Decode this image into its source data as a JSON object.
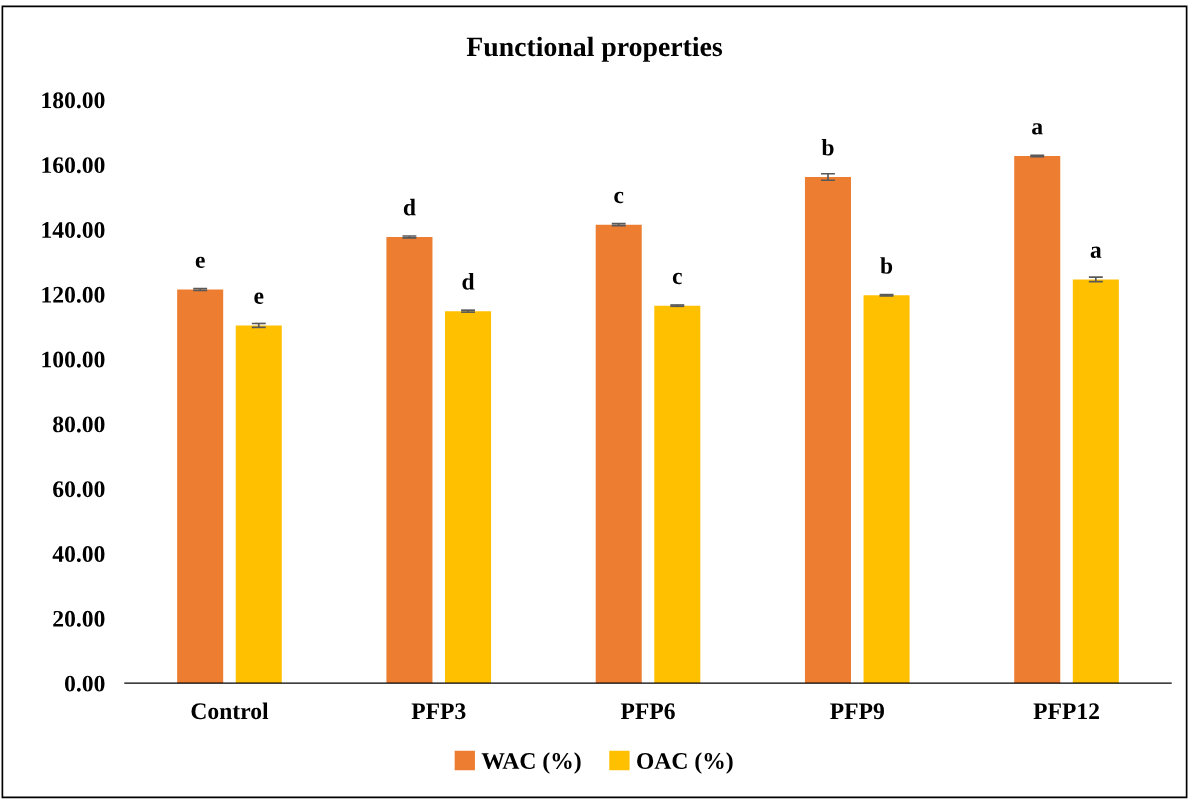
{
  "chart_data": {
    "type": "bar",
    "title": "Functional properties",
    "categories": [
      "Control",
      "PFP3",
      "PFP6",
      "PFP9",
      "PFP12"
    ],
    "series": [
      {
        "name": "WAC (%)",
        "color": "#ed7d31",
        "values": [
          121.5,
          137.7,
          141.5,
          156.2,
          162.7
        ],
        "errors": [
          0.3,
          0.3,
          0.3,
          1.0,
          0.2
        ],
        "value_labels": [
          "e",
          "d",
          "c",
          "b",
          "a"
        ]
      },
      {
        "name": "OAC (%)",
        "color": "#ffc000",
        "values": [
          110.4,
          114.8,
          116.5,
          119.7,
          124.6
        ],
        "errors": [
          0.6,
          0.3,
          0.2,
          0.2,
          0.7
        ],
        "value_labels": [
          "e",
          "d",
          "c",
          "b",
          "a"
        ]
      }
    ],
    "ylim": [
      0,
      180
    ],
    "yticks": [
      {
        "value": 0,
        "label": "0.00"
      },
      {
        "value": 20,
        "label": "20.00"
      },
      {
        "value": 40,
        "label": "40.00"
      },
      {
        "value": 60,
        "label": "60.00"
      },
      {
        "value": 80,
        "label": "80.00"
      },
      {
        "value": 100,
        "label": "100.00"
      },
      {
        "value": 120,
        "label": "120.00"
      },
      {
        "value": 140,
        "label": "140.00"
      },
      {
        "value": 160,
        "label": "160.00"
      },
      {
        "value": 180,
        "label": "180.00"
      }
    ],
    "grid": false,
    "legend": "bottom"
  }
}
